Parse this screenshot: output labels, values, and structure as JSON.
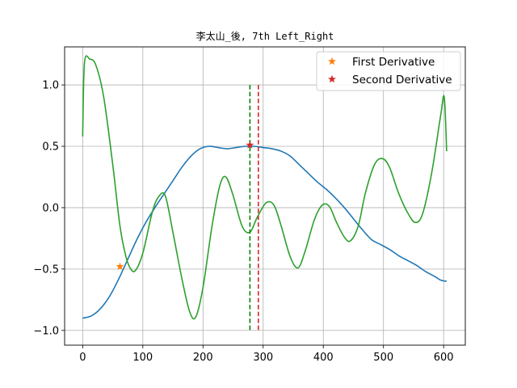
{
  "chart_data": {
    "type": "line",
    "title": "李太山_後, 7th Left_Right",
    "xlabel": "",
    "ylabel": "",
    "xlim": [
      -30,
      636
    ],
    "ylim": [
      -1.12,
      1.31
    ],
    "x_ticks": [
      0,
      100,
      200,
      300,
      400,
      500,
      600
    ],
    "y_ticks": [
      -1.0,
      -0.5,
      0.0,
      0.5,
      1.0
    ],
    "x_tick_labels": [
      "0",
      "100",
      "200",
      "300",
      "400",
      "500",
      "600"
    ],
    "y_tick_labels": [
      "−1.0",
      "−0.5",
      "0.0",
      "0.5",
      "1.0"
    ],
    "grid": true,
    "legend_position": "top-right",
    "series": [
      {
        "color": "#1f77b4",
        "points": [
          [
            0,
            -0.9
          ],
          [
            15,
            -0.88
          ],
          [
            30,
            -0.82
          ],
          [
            45,
            -0.72
          ],
          [
            60,
            -0.58
          ],
          [
            75,
            -0.42
          ],
          [
            90,
            -0.26
          ],
          [
            105,
            -0.12
          ],
          [
            120,
            0.0
          ],
          [
            135,
            0.11
          ],
          [
            150,
            0.22
          ],
          [
            165,
            0.33
          ],
          [
            180,
            0.42
          ],
          [
            195,
            0.48
          ],
          [
            210,
            0.5
          ],
          [
            225,
            0.49
          ],
          [
            240,
            0.48
          ],
          [
            255,
            0.49
          ],
          [
            270,
            0.5
          ],
          [
            285,
            0.5
          ],
          [
            300,
            0.49
          ],
          [
            315,
            0.48
          ],
          [
            330,
            0.46
          ],
          [
            345,
            0.42
          ],
          [
            360,
            0.35
          ],
          [
            375,
            0.28
          ],
          [
            390,
            0.21
          ],
          [
            405,
            0.15
          ],
          [
            420,
            0.08
          ],
          [
            435,
            0.0
          ],
          [
            450,
            -0.09
          ],
          [
            465,
            -0.18
          ],
          [
            480,
            -0.26
          ],
          [
            495,
            -0.3
          ],
          [
            510,
            -0.34
          ],
          [
            525,
            -0.39
          ],
          [
            540,
            -0.43
          ],
          [
            555,
            -0.47
          ],
          [
            570,
            -0.52
          ],
          [
            585,
            -0.56
          ],
          [
            595,
            -0.59
          ],
          [
            605,
            -0.6
          ]
        ]
      },
      {
        "color": "#2ca02c",
        "points": [
          [
            0,
            0.58
          ],
          [
            3,
            1.18
          ],
          [
            12,
            1.21
          ],
          [
            22,
            1.16
          ],
          [
            35,
            0.9
          ],
          [
            50,
            0.35
          ],
          [
            62,
            -0.15
          ],
          [
            72,
            -0.4
          ],
          [
            80,
            -0.5
          ],
          [
            88,
            -0.51
          ],
          [
            100,
            -0.37
          ],
          [
            115,
            -0.05
          ],
          [
            125,
            0.08
          ],
          [
            137,
            0.1
          ],
          [
            150,
            -0.2
          ],
          [
            165,
            -0.58
          ],
          [
            178,
            -0.85
          ],
          [
            188,
            -0.89
          ],
          [
            200,
            -0.65
          ],
          [
            215,
            -0.15
          ],
          [
            228,
            0.18
          ],
          [
            238,
            0.25
          ],
          [
            250,
            0.1
          ],
          [
            265,
            -0.15
          ],
          [
            278,
            -0.2
          ],
          [
            290,
            -0.08
          ],
          [
            305,
            0.04
          ],
          [
            318,
            0.02
          ],
          [
            330,
            -0.15
          ],
          [
            345,
            -0.4
          ],
          [
            358,
            -0.49
          ],
          [
            370,
            -0.35
          ],
          [
            385,
            -0.1
          ],
          [
            398,
            0.02
          ],
          [
            410,
            0.01
          ],
          [
            422,
            -0.12
          ],
          [
            435,
            -0.24
          ],
          [
            445,
            -0.27
          ],
          [
            458,
            -0.15
          ],
          [
            470,
            0.12
          ],
          [
            485,
            0.35
          ],
          [
            498,
            0.4
          ],
          [
            510,
            0.33
          ],
          [
            525,
            0.12
          ],
          [
            540,
            -0.04
          ],
          [
            553,
            -0.12
          ],
          [
            565,
            -0.05
          ],
          [
            580,
            0.28
          ],
          [
            595,
            0.75
          ],
          [
            601,
            0.9
          ],
          [
            605,
            0.46
          ]
        ]
      }
    ],
    "markers": [
      {
        "legend": "First Derivative",
        "x": 62,
        "y": -0.48,
        "color": "#ff7f0e"
      },
      {
        "legend": "Second Derivative",
        "x": 278,
        "y": 0.51,
        "color": "#d62728"
      }
    ],
    "vlines": [
      {
        "x": 278,
        "color": "#008000",
        "ymin": -1.0,
        "ymax": 1.0
      },
      {
        "x": 292,
        "color": "#d62728",
        "ymin": -1.0,
        "ymax": 1.0
      }
    ]
  }
}
